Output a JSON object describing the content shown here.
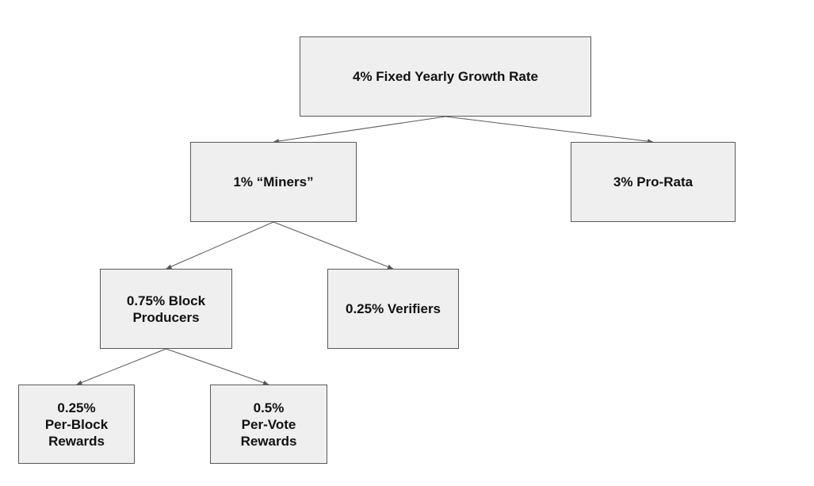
{
  "diagram": {
    "line_color": "#595959",
    "node_fill": "#efefef",
    "nodes": {
      "root": "4% Fixed Yearly Growth Rate",
      "miners": "1% “Miners”",
      "pro_rata": "3% Pro-Rata",
      "block_producers": "0.75% Block\nProducers",
      "verifiers": "0.25% Verifiers",
      "per_block": "0.25%\nPer-Block\nRewards",
      "per_vote": "0.5%\nPer-Vote\nRewards"
    },
    "edges": [
      {
        "from": "root",
        "to": "miners"
      },
      {
        "from": "root",
        "to": "pro_rata"
      },
      {
        "from": "miners",
        "to": "block_producers"
      },
      {
        "from": "miners",
        "to": "verifiers"
      },
      {
        "from": "block_producers",
        "to": "per_block"
      },
      {
        "from": "block_producers",
        "to": "per_vote"
      }
    ]
  }
}
